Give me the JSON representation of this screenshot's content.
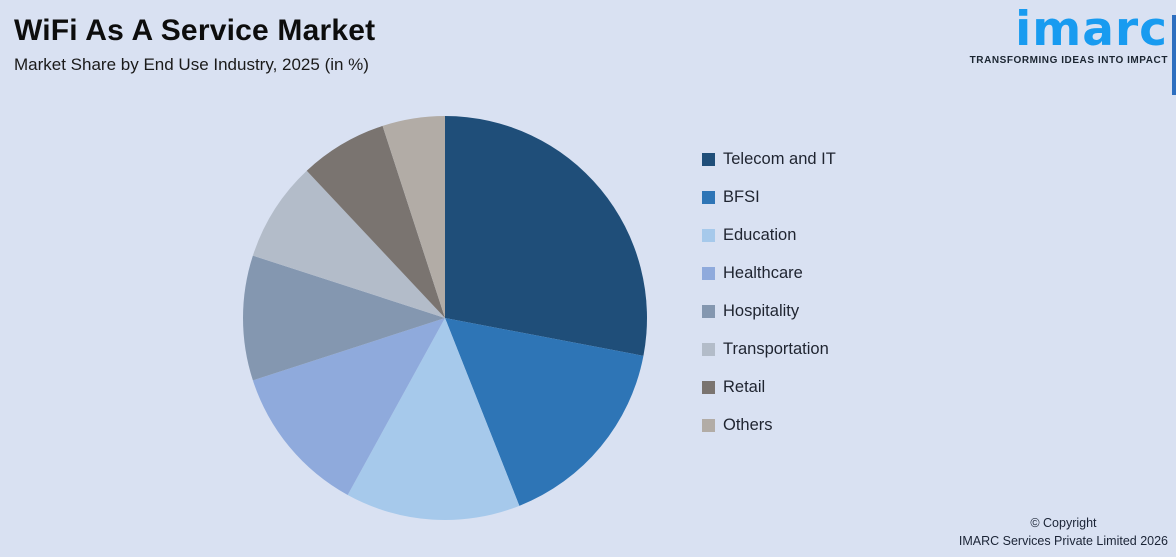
{
  "page": {
    "background_color": "#D9E1F2",
    "title": "WiFi As A Service Market",
    "subtitle": "Market Share by End Use Industry, 2025 (in %)"
  },
  "logo": {
    "brand": "imarc",
    "brand_color": "#189BF0",
    "tagline": "TRANSFORMING IDEAS INTO IMPACT"
  },
  "footer": {
    "copyright_line1": "© Copyright",
    "copyright_line2": "IMARC Services Private Limited 2026"
  },
  "chart_data": {
    "type": "pie",
    "title": "WiFi As A Service Market",
    "subtitle": "Market Share by End Use Industry, 2025 (in %)",
    "unit": "%",
    "direction": "clockwise",
    "start_angle": "12 o'clock",
    "legend_position": "right",
    "data_labels_shown": false,
    "values_estimated_from_angles": true,
    "categories": [
      "Telecom and IT",
      "BFSI",
      "Education",
      "Healthcare",
      "Hospitality",
      "Transportation",
      "Retail",
      "Others"
    ],
    "values": [
      28,
      16,
      14,
      12,
      10,
      8,
      7,
      5
    ],
    "colors": [
      "#1F4E79",
      "#2E75B6",
      "#A6C9EB",
      "#8FAADC",
      "#8497B0",
      "#B3BCC9",
      "#7A7470",
      "#B2ACA6"
    ]
  }
}
